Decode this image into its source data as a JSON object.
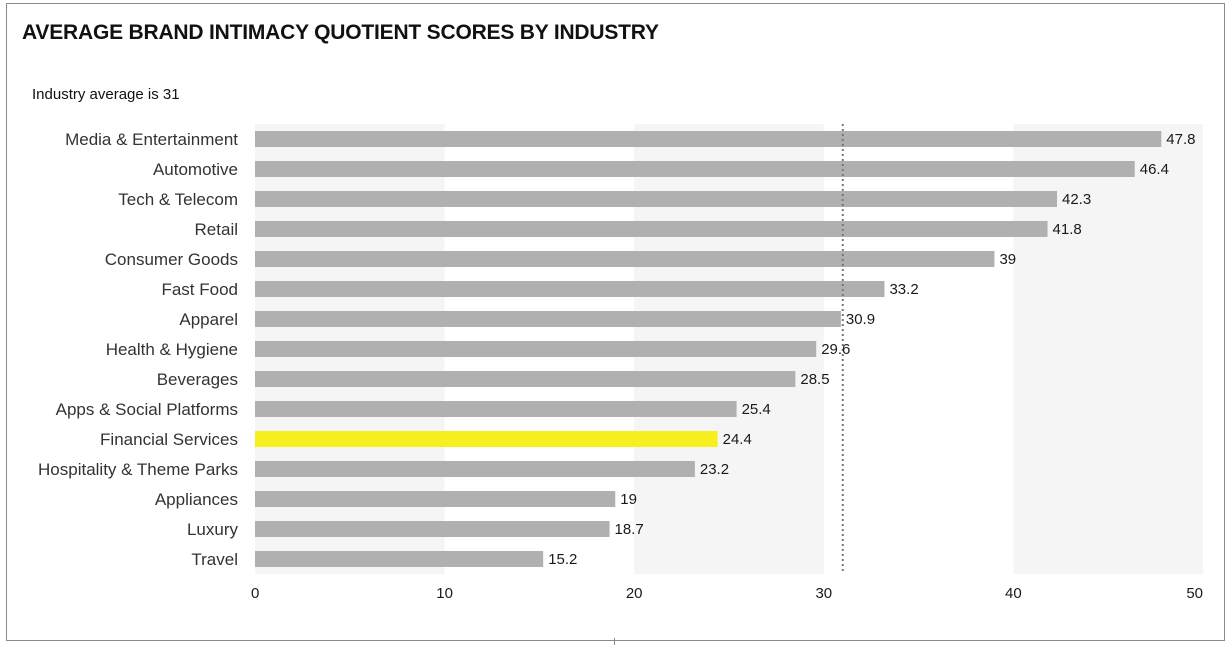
{
  "header": {
    "title": "AVERAGE BRAND INTIMACY QUOTIENT SCORES BY INDUSTRY",
    "subtitle": "Industry average is 31"
  },
  "colors": {
    "bar": "#b0b0b0",
    "highlight": "#f7ef1f",
    "band": "#f5f5f5",
    "reference_line": "#777777"
  },
  "chart_data": {
    "type": "bar",
    "orientation": "horizontal",
    "title": "AVERAGE BRAND INTIMACY QUOTIENT SCORES BY INDUSTRY",
    "subtitle": "Industry average is 31",
    "categories": [
      "Media & Entertainment",
      "Automotive",
      "Tech & Telecom",
      "Retail",
      "Consumer Goods",
      "Fast Food",
      "Apparel",
      "Health & Hygiene",
      "Beverages",
      "Apps & Social Platforms",
      "Financial Services",
      "Hospitality & Theme Parks",
      "Appliances",
      "Luxury",
      "Travel"
    ],
    "values": [
      47.8,
      46.4,
      42.3,
      41.8,
      39,
      33.2,
      30.9,
      29.6,
      28.5,
      25.4,
      24.4,
      23.2,
      19,
      18.7,
      15.2
    ],
    "value_labels": [
      "47.8",
      "46.4",
      "42.3",
      "41.8",
      "39",
      "33.2",
      "30.9",
      "29.6",
      "28.5",
      "25.4",
      "24.4",
      "23.2",
      "19",
      "18.7",
      "15.2"
    ],
    "highlight_category": "Financial Services",
    "xlim": [
      0,
      50
    ],
    "xticks": [
      0,
      10,
      20,
      30,
      40,
      50
    ],
    "reference_line": 31,
    "grid": false,
    "alternating_bands": true
  }
}
